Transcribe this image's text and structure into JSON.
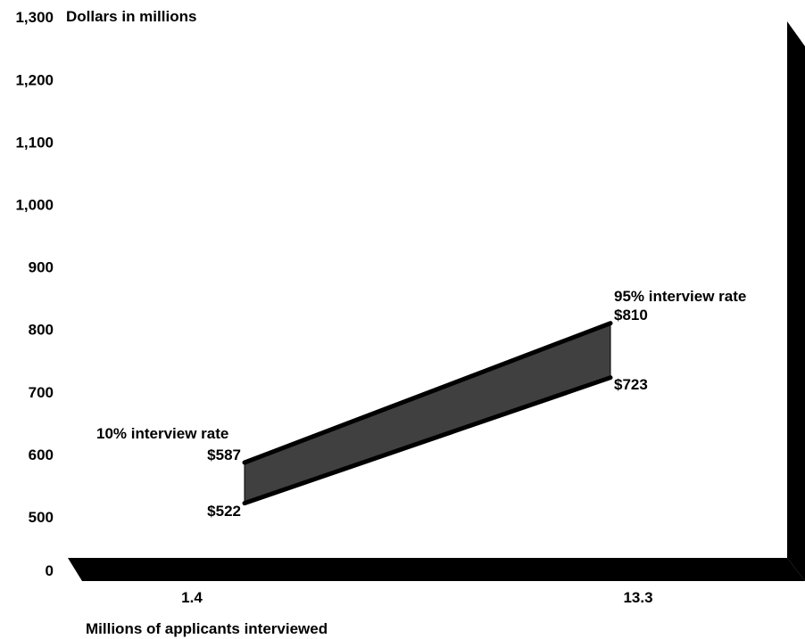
{
  "chart_data": {
    "type": "area",
    "ylabel": "Dollars in millions",
    "xlabel": "Millions of applicants interviewed",
    "categories": [
      "1.4",
      "13.3"
    ],
    "yticks": [
      "0",
      "500",
      "600",
      "700",
      "800",
      "900",
      "1,000",
      "1,100",
      "1,200",
      "1,300"
    ],
    "ylim": [
      0,
      1300
    ],
    "y_axis_break": "0 to 500",
    "series": [
      {
        "values": [
          587,
          810
        ],
        "value_labels": [
          "$587",
          "$810"
        ]
      },
      {
        "values": [
          522,
          723
        ],
        "value_labels": [
          "$522",
          "$723"
        ]
      }
    ],
    "annotations": [
      "10% interview rate",
      "95% interview rate"
    ],
    "band_fill": "#404040",
    "frame_color": "#000000"
  }
}
